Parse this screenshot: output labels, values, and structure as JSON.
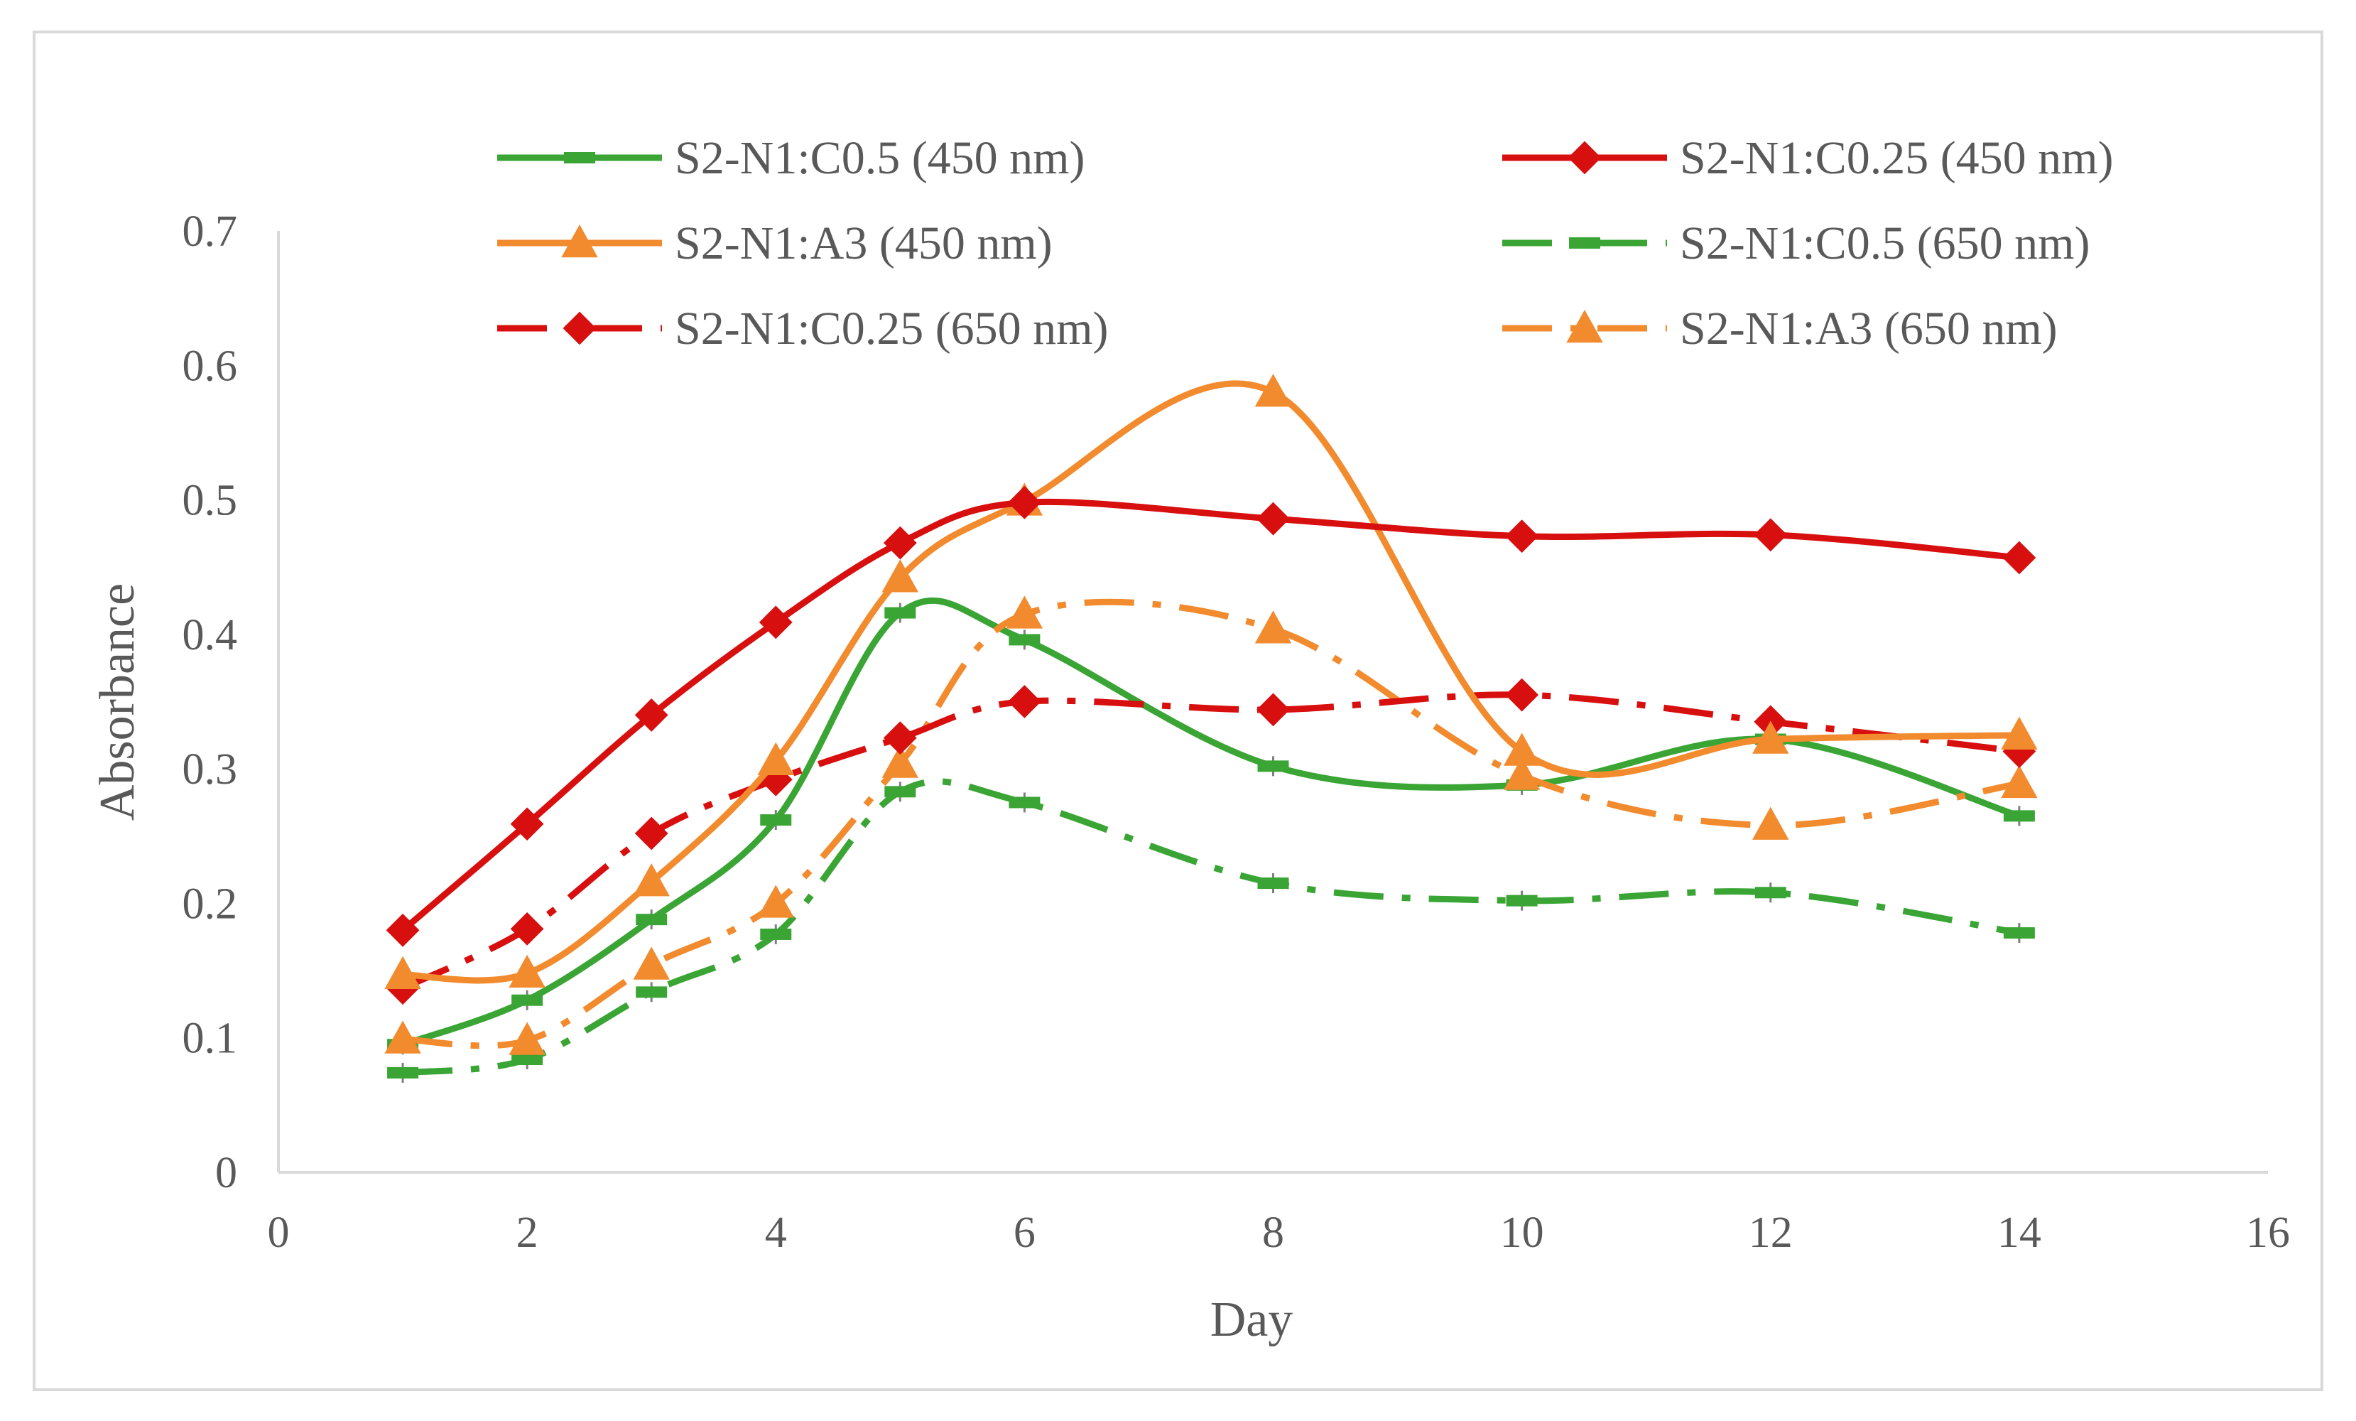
{
  "chart_data": {
    "type": "line",
    "title": "",
    "xlabel": "Day",
    "ylabel": "Absorbance",
    "xlim": [
      0,
      16
    ],
    "ylim": [
      0,
      0.7
    ],
    "x_ticks": [
      "0",
      "2",
      "4",
      "6",
      "8",
      "10",
      "12",
      "14",
      "16"
    ],
    "y_ticks": [
      "0",
      "0.1",
      "0.2",
      "0.3",
      "0.4",
      "0.5",
      "0.6",
      "0.7"
    ],
    "grid": false,
    "legend_position": "top",
    "x": [
      1,
      2,
      3,
      4,
      5,
      6,
      8,
      10,
      12,
      14
    ],
    "series": [
      {
        "name": "S2-N1:C0.5 (450 nm)",
        "color": "#3aa535",
        "marker": "dash",
        "line_style": "solid",
        "values": [
          0.095,
          0.128,
          0.188,
          0.262,
          0.416,
          0.396,
          0.302,
          0.288,
          0.322,
          0.265
        ]
      },
      {
        "name": "S2-N1:C0.25 (450 nm)",
        "color": "#d80f0f",
        "marker": "diamond",
        "line_style": "solid",
        "values": [
          0.18,
          0.259,
          0.34,
          0.409,
          0.468,
          0.498,
          0.486,
          0.473,
          0.474,
          0.457
        ]
      },
      {
        "name": "S2-N1:A3 (450 nm)",
        "color": "#f28a2e",
        "marker": "triangle",
        "line_style": "solid",
        "values": [
          0.147,
          0.148,
          0.216,
          0.306,
          0.442,
          0.499,
          0.58,
          0.313,
          0.322,
          0.325
        ]
      },
      {
        "name": "S2-N1:C0.5 (650 nm)",
        "color": "#3aa535",
        "marker": "dash",
        "line_style": "dashdot",
        "values": [
          0.074,
          0.084,
          0.134,
          0.177,
          0.283,
          0.275,
          0.215,
          0.202,
          0.208,
          0.178
        ]
      },
      {
        "name": "S2-N1:C0.25 (650 nm)",
        "color": "#d80f0f",
        "marker": "diamond",
        "line_style": "dashdot",
        "values": [
          0.137,
          0.181,
          0.252,
          0.292,
          0.323,
          0.35,
          0.344,
          0.355,
          0.335,
          0.313
        ]
      },
      {
        "name": "S2-N1:A3 (650 nm)",
        "color": "#f28a2e",
        "marker": "triangle",
        "line_style": "dashdot",
        "values": [
          0.099,
          0.098,
          0.154,
          0.2,
          0.304,
          0.415,
          0.404,
          0.295,
          0.258,
          0.289
        ]
      }
    ]
  }
}
